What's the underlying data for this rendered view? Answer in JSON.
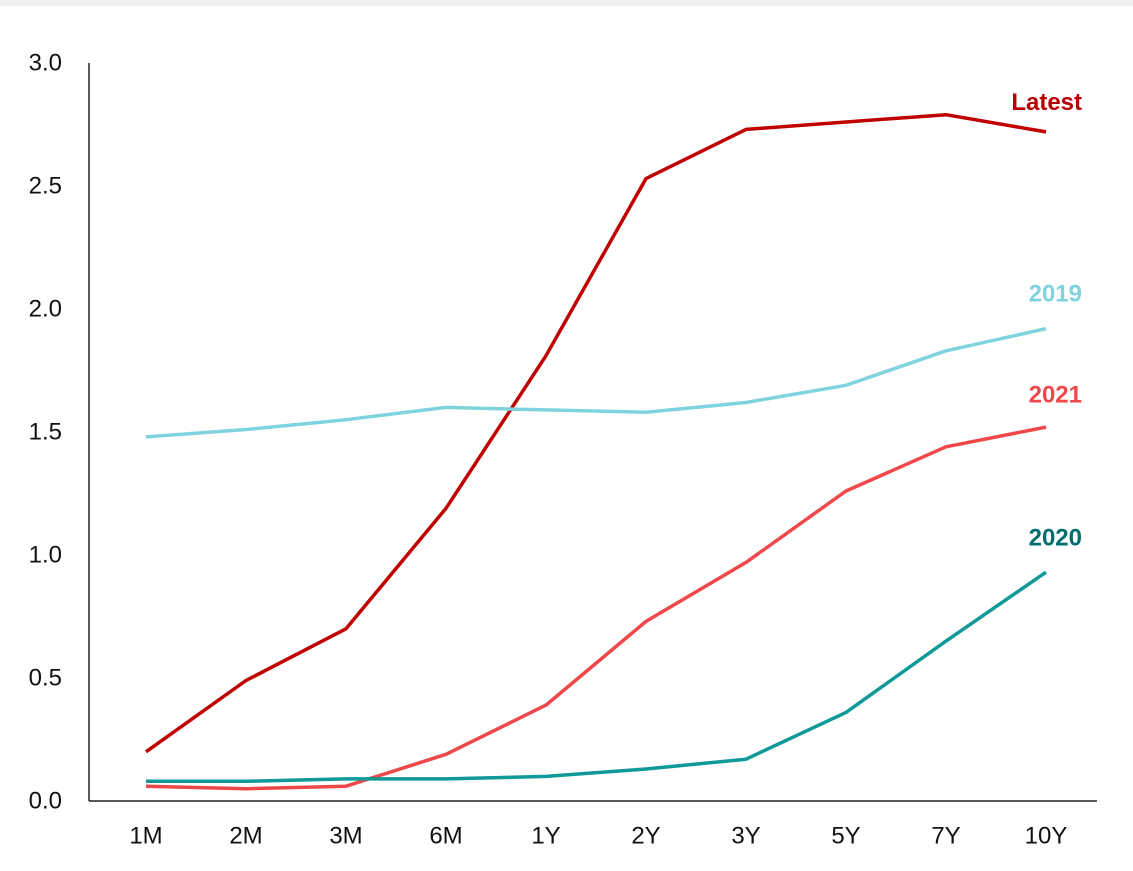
{
  "chart_data": {
    "type": "line",
    "categories": [
      "1M",
      "2M",
      "3M",
      "6M",
      "1Y",
      "2Y",
      "3Y",
      "5Y",
      "7Y",
      "10Y"
    ],
    "ylim": [
      0,
      3.0
    ],
    "yticks": [
      "0.0",
      "0.5",
      "1.0",
      "1.5",
      "2.0",
      "2.5",
      "3.0"
    ],
    "grid": false,
    "series": [
      {
        "name": "Latest",
        "color": "#C00000",
        "values": [
          0.2,
          0.49,
          0.7,
          1.19,
          1.81,
          2.53,
          2.73,
          2.76,
          2.79,
          2.72
        ]
      },
      {
        "name": "2019",
        "color": "#7FD3DF",
        "values": [
          1.48,
          1.51,
          1.55,
          1.6,
          1.59,
          1.58,
          1.62,
          1.69,
          1.83,
          1.92
        ]
      },
      {
        "name": "2021",
        "color": "#F0474A",
        "values": [
          0.06,
          0.05,
          0.06,
          0.19,
          0.39,
          0.73,
          0.97,
          1.26,
          1.44,
          1.52
        ]
      },
      {
        "name": "2020",
        "color": "#0F9A99",
        "values": [
          0.08,
          0.08,
          0.09,
          0.09,
          0.1,
          0.13,
          0.17,
          0.36,
          0.65,
          0.93
        ]
      }
    ],
    "series_label_colors": {
      "Latest": "#B80000",
      "2019": "#7FD3DF",
      "2021": "#F0474A",
      "2020": "#006E6E"
    }
  }
}
